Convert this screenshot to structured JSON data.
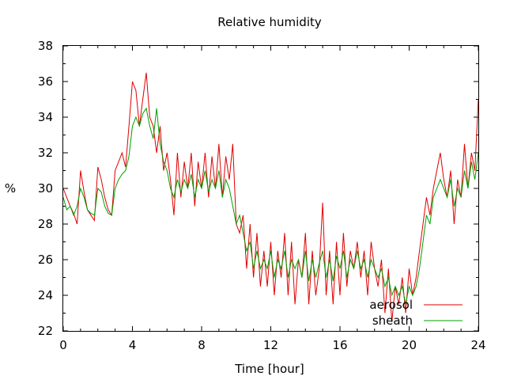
{
  "chart_data": {
    "type": "line",
    "title": "Relative humidity",
    "xlabel": "Time [hour]",
    "ylabel": "%",
    "xlim": [
      0,
      24
    ],
    "ylim": [
      22,
      38
    ],
    "xticks": [
      0,
      4,
      8,
      12,
      16,
      20,
      24
    ],
    "yticks": [
      22,
      24,
      26,
      28,
      30,
      32,
      34,
      36,
      38
    ],
    "grid": false,
    "legend_position": "bottom-right",
    "series": [
      {
        "name": "aerosol",
        "color": "#e00000",
        "x": [
          0,
          0.2,
          0.4,
          0.6,
          0.8,
          1.0,
          1.2,
          1.4,
          1.6,
          1.8,
          2.0,
          2.2,
          2.4,
          2.6,
          2.8,
          3.0,
          3.2,
          3.4,
          3.6,
          3.8,
          4.0,
          4.2,
          4.4,
          4.6,
          4.8,
          5.0,
          5.2,
          5.4,
          5.6,
          5.8,
          6.0,
          6.2,
          6.4,
          6.6,
          6.8,
          7.0,
          7.2,
          7.4,
          7.6,
          7.8,
          8.0,
          8.2,
          8.4,
          8.6,
          8.8,
          9.0,
          9.2,
          9.4,
          9.6,
          9.8,
          10.0,
          10.2,
          10.4,
          10.6,
          10.8,
          11.0,
          11.2,
          11.4,
          11.6,
          11.8,
          12.0,
          12.2,
          12.4,
          12.6,
          12.8,
          13.0,
          13.2,
          13.4,
          13.6,
          13.8,
          14.0,
          14.2,
          14.4,
          14.6,
          14.8,
          15.0,
          15.2,
          15.4,
          15.6,
          15.8,
          16.0,
          16.2,
          16.4,
          16.6,
          16.8,
          17.0,
          17.2,
          17.4,
          17.6,
          17.8,
          18.0,
          18.2,
          18.4,
          18.6,
          18.8,
          19.0,
          19.2,
          19.4,
          19.6,
          19.8,
          20.0,
          20.2,
          20.4,
          20.6,
          20.8,
          21.0,
          21.2,
          21.4,
          21.6,
          21.8,
          22.0,
          22.2,
          22.4,
          22.6,
          22.8,
          23.0,
          23.2,
          23.4,
          23.6,
          23.8,
          24.0
        ],
        "values": [
          30.0,
          29.5,
          29.0,
          28.6,
          28.0,
          31.0,
          29.8,
          28.8,
          28.5,
          28.2,
          31.2,
          30.5,
          29.5,
          28.8,
          28.5,
          31.0,
          31.5,
          32.0,
          31.2,
          33.5,
          36.0,
          35.5,
          33.5,
          35.0,
          36.5,
          34.0,
          33.5,
          32.0,
          33.5,
          31.0,
          32.0,
          30.5,
          28.5,
          32.0,
          29.5,
          31.5,
          30.0,
          32.0,
          29.0,
          31.5,
          30.0,
          32.0,
          29.5,
          31.8,
          30.0,
          32.5,
          29.5,
          31.8,
          30.5,
          32.5,
          28.0,
          27.5,
          28.5,
          25.5,
          28.0,
          25.0,
          27.5,
          24.5,
          26.5,
          24.5,
          27.0,
          24.0,
          26.5,
          25.0,
          27.5,
          24.0,
          27.0,
          23.5,
          26.0,
          25.0,
          27.5,
          23.5,
          26.5,
          24.0,
          25.5,
          29.2,
          24.0,
          26.5,
          23.5,
          27.0,
          24.0,
          27.5,
          24.5,
          26.5,
          25.5,
          27.0,
          25.0,
          26.5,
          24.0,
          27.0,
          25.5,
          24.5,
          26.0,
          23.0,
          25.5,
          22.5,
          24.5,
          23.5,
          25.0,
          23.0,
          25.5,
          24.0,
          25.0,
          26.5,
          28.0,
          29.5,
          28.5,
          30.0,
          31.0,
          32.0,
          30.5,
          29.5,
          31.0,
          28.0,
          30.5,
          29.5,
          32.5,
          30.0,
          32.0,
          31.0,
          35.0
        ]
      },
      {
        "name": "sheath",
        "color": "#00a000",
        "x": [
          0,
          0.2,
          0.4,
          0.6,
          0.8,
          1.0,
          1.2,
          1.4,
          1.6,
          1.8,
          2.0,
          2.2,
          2.4,
          2.6,
          2.8,
          3.0,
          3.2,
          3.4,
          3.6,
          3.8,
          4.0,
          4.2,
          4.4,
          4.6,
          4.8,
          5.0,
          5.2,
          5.4,
          5.6,
          5.8,
          6.0,
          6.2,
          6.4,
          6.6,
          6.8,
          7.0,
          7.2,
          7.4,
          7.6,
          7.8,
          8.0,
          8.2,
          8.4,
          8.6,
          8.8,
          9.0,
          9.2,
          9.4,
          9.6,
          9.8,
          10.0,
          10.2,
          10.4,
          10.6,
          10.8,
          11.0,
          11.2,
          11.4,
          11.6,
          11.8,
          12.0,
          12.2,
          12.4,
          12.6,
          12.8,
          13.0,
          13.2,
          13.4,
          13.6,
          13.8,
          14.0,
          14.2,
          14.4,
          14.6,
          14.8,
          15.0,
          15.2,
          15.4,
          15.6,
          15.8,
          16.0,
          16.2,
          16.4,
          16.6,
          16.8,
          17.0,
          17.2,
          17.4,
          17.6,
          17.8,
          18.0,
          18.2,
          18.4,
          18.6,
          18.8,
          19.0,
          19.2,
          19.4,
          19.6,
          19.8,
          20.0,
          20.2,
          20.4,
          20.6,
          20.8,
          21.0,
          21.2,
          21.4,
          21.6,
          21.8,
          22.0,
          22.2,
          22.4,
          22.6,
          22.8,
          23.0,
          23.2,
          23.4,
          23.6,
          23.8,
          24.0
        ],
        "values": [
          29.5,
          28.8,
          29.0,
          28.5,
          29.0,
          30.0,
          29.5,
          28.8,
          28.6,
          28.5,
          30.0,
          29.8,
          29.0,
          28.6,
          28.5,
          30.0,
          30.5,
          30.8,
          31.0,
          31.8,
          33.5,
          34.0,
          33.5,
          34.2,
          34.5,
          33.5,
          32.8,
          34.5,
          32.5,
          31.5,
          31.0,
          30.0,
          29.5,
          30.5,
          29.8,
          30.5,
          30.0,
          30.8,
          29.5,
          30.5,
          30.0,
          31.0,
          29.8,
          30.5,
          30.0,
          31.0,
          29.5,
          30.5,
          30.0,
          29.0,
          28.0,
          28.5,
          27.5,
          26.5,
          27.0,
          25.5,
          26.5,
          25.5,
          26.0,
          25.5,
          26.5,
          25.0,
          26.0,
          25.5,
          26.5,
          25.0,
          26.0,
          25.5,
          26.0,
          25.0,
          26.5,
          24.8,
          26.0,
          25.0,
          25.8,
          26.5,
          25.0,
          26.0,
          24.8,
          26.2,
          25.5,
          26.5,
          25.0,
          26.0,
          25.5,
          26.5,
          25.5,
          26.0,
          25.0,
          26.0,
          25.5,
          25.0,
          25.5,
          24.5,
          25.0,
          24.0,
          24.5,
          24.0,
          24.5,
          23.5,
          24.5,
          24.0,
          24.5,
          25.5,
          27.0,
          28.5,
          28.0,
          29.5,
          30.0,
          30.5,
          30.0,
          29.5,
          30.5,
          29.0,
          30.0,
          29.5,
          31.0,
          30.0,
          31.5,
          30.5,
          32.0
        ]
      }
    ]
  }
}
